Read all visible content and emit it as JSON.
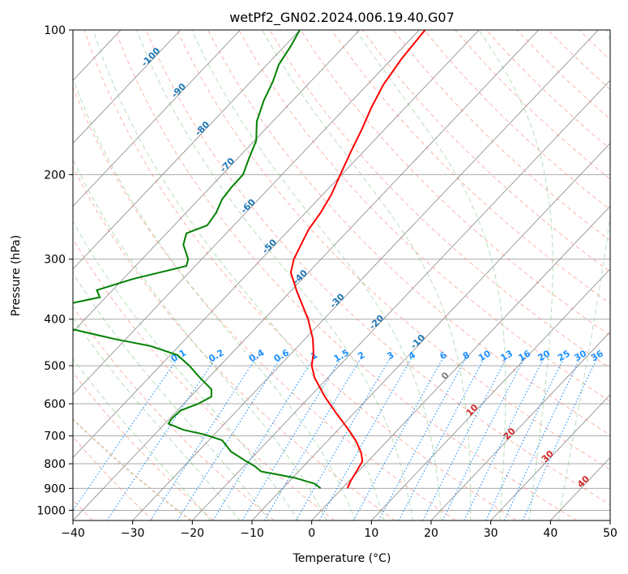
{
  "chart_data": {
    "type": "line",
    "title": "wetPf2_GN02.2024.006.19.40.G07",
    "xlabel": "Temperature (°C)",
    "ylabel": "Pressure (hPa)",
    "xlim": [
      -40,
      50
    ],
    "ylim": [
      1050,
      100
    ],
    "y_scale": "log",
    "x_ticks": [
      -40,
      -30,
      -20,
      -10,
      0,
      10,
      20,
      30,
      40,
      50
    ],
    "y_ticks": [
      100,
      200,
      300,
      400,
      500,
      600,
      700,
      800,
      900,
      1000
    ],
    "grid": true,
    "series": [
      {
        "key": "temperature",
        "color": "#ff0000",
        "points": [
          [
            6.0,
            900
          ],
          [
            6.5,
            870
          ],
          [
            7.5,
            830
          ],
          [
            8.5,
            790
          ],
          [
            8.3,
            760
          ],
          [
            7.5,
            720
          ],
          [
            6.2,
            680
          ],
          [
            4.2,
            630
          ],
          [
            2.2,
            580
          ],
          [
            0.5,
            530
          ],
          [
            0.0,
            500
          ],
          [
            0.3,
            470
          ],
          [
            0.2,
            440
          ],
          [
            -0.6,
            400
          ],
          [
            -2.5,
            350
          ],
          [
            -3.5,
            320
          ],
          [
            -3.0,
            300
          ],
          [
            -1.8,
            280
          ],
          [
            -0.5,
            260
          ],
          [
            1.5,
            240
          ],
          [
            3.3,
            220
          ],
          [
            4.8,
            200
          ],
          [
            6.5,
            180
          ],
          [
            8.5,
            160
          ],
          [
            10.0,
            145
          ],
          [
            12.0,
            130
          ],
          [
            15.0,
            115
          ],
          [
            19.0,
            100
          ]
        ]
      },
      {
        "key": "dewpoint",
        "color": "#008000",
        "points": [
          [
            1.5,
            900
          ],
          [
            0.5,
            880
          ],
          [
            -3.0,
            855
          ],
          [
            -8.5,
            830
          ],
          [
            -9.5,
            810
          ],
          [
            -11.0,
            790
          ],
          [
            -13.5,
            755
          ],
          [
            -15.0,
            715
          ],
          [
            -18.0,
            695
          ],
          [
            -21.5,
            680
          ],
          [
            -24.0,
            660
          ],
          [
            -23.5,
            645
          ],
          [
            -22.0,
            620
          ],
          [
            -19.0,
            600
          ],
          [
            -16.8,
            580
          ],
          [
            -16.8,
            560
          ],
          [
            -19.0,
            525
          ],
          [
            -20.5,
            500
          ],
          [
            -22.5,
            475
          ],
          [
            -27.0,
            455
          ],
          [
            -33.0,
            440
          ],
          [
            -40.0,
            420
          ]
        ],
        "points_upper": [
          [
            -40.0,
            370
          ],
          [
            -35.5,
            360
          ],
          [
            -36.0,
            348
          ],
          [
            -30.0,
            330
          ],
          [
            -21.0,
            310
          ],
          [
            -20.7,
            300
          ],
          [
            -21.5,
            280
          ],
          [
            -21.0,
            265
          ],
          [
            -17.5,
            255
          ],
          [
            -16.0,
            240
          ],
          [
            -15.0,
            225
          ],
          [
            -13.5,
            213
          ],
          [
            -11.5,
            200
          ],
          [
            -10.5,
            185
          ],
          [
            -9.3,
            170
          ],
          [
            -9.2,
            155
          ],
          [
            -8.0,
            140
          ],
          [
            -6.5,
            128
          ],
          [
            -5.5,
            118
          ],
          [
            -3.5,
            108
          ],
          [
            -2.0,
            100
          ]
        ]
      }
    ],
    "isotherm_labels": [
      "-100",
      "-90",
      "-80",
      "-70",
      "-60",
      "-50",
      "-40",
      "-30",
      "-20",
      "-10"
    ],
    "isotherm_label_color": "#1f77b4",
    "mixing_ratio_labels": [
      "0.1",
      "0.2",
      "0.4",
      "0.6",
      "1",
      "1.5",
      "2",
      "3",
      "4",
      "6",
      "8",
      "10",
      "13",
      "16",
      "20",
      "25",
      "30",
      "36"
    ],
    "mixing_ratio_label_color": "#1e90ff",
    "warm_isotherm_labels": [
      "0",
      "10",
      "20",
      "30",
      "40"
    ],
    "warm_label_colors": [
      "#808080",
      "#d62728",
      "#d62728",
      "#d62728",
      "#d62728"
    ],
    "colors": {
      "dry_adiabat": "#fa8072",
      "moist_adiabat": "#6fbf6f",
      "mixing_ratio": "#1e90ff",
      "isotherm": "#888888",
      "grid": "#aaaaaa",
      "thick_adiabat": "#d2b48c"
    }
  }
}
